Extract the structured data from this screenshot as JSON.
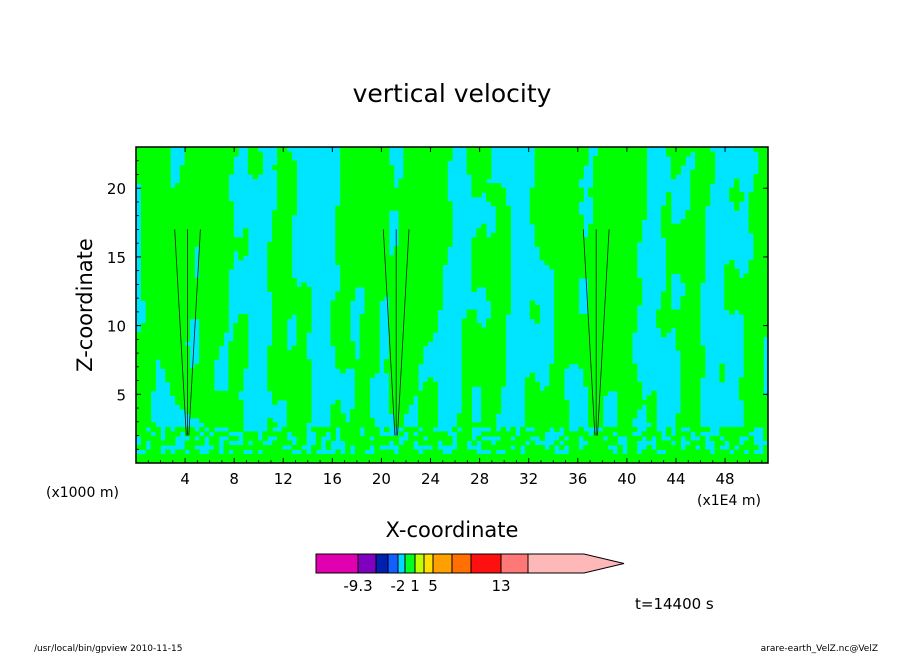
{
  "chart_data": {
    "type": "heatmap",
    "title": "vertical velocity",
    "xlabel": "X-coordinate",
    "ylabel": "Z-coordinate",
    "x_unit_left": "(x1000 m)",
    "x_unit_right": "(x1E4 m)",
    "xlim": [
      0,
      51.5
    ],
    "ylim": [
      0,
      23
    ],
    "x_ticks": [
      4,
      8,
      12,
      16,
      20,
      24,
      28,
      32,
      36,
      40,
      44,
      48
    ],
    "y_ticks": [
      5,
      10,
      15,
      20
    ],
    "grid": false,
    "field": {
      "dominant_levels": [
        "cyan",
        "green"
      ],
      "updraft_cores_x": [
        4.2,
        21.2,
        37.5
      ],
      "surface_noise_layer_z": [
        0,
        2.5
      ]
    },
    "colorbar": {
      "colors": [
        "#e000b0",
        "#8000c0",
        "#0020b0",
        "#1060ff",
        "#00d8ff",
        "#00ff20",
        "#c0ff00",
        "#ffe000",
        "#ffa000",
        "#ff7000",
        "#ff1010",
        "#ff7878",
        "#ffb8b8"
      ],
      "tick_labels": [
        "-9.3",
        "-2",
        "1",
        "5",
        "13"
      ],
      "tick_boundaries": [
        1,
        4,
        6,
        8,
        11
      ]
    },
    "time_label": "t=14400 s"
  },
  "footer": {
    "left": "/usr/local/bin/gpview  2010-11-15",
    "right": "arare-earth_VelZ.nc@VelZ"
  }
}
